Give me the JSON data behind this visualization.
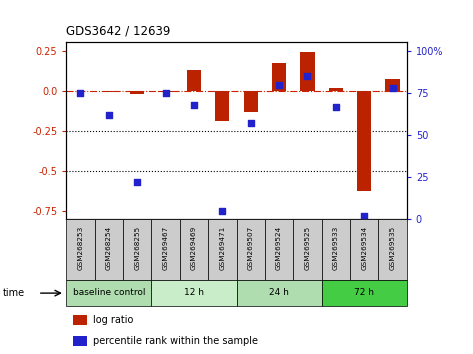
{
  "title": "GDS3642 / 12639",
  "samples": [
    "GSM268253",
    "GSM268254",
    "GSM268255",
    "GSM269467",
    "GSM269469",
    "GSM269471",
    "GSM269507",
    "GSM269524",
    "GSM269525",
    "GSM269533",
    "GSM269534",
    "GSM269535"
  ],
  "log_ratio": [
    0.0,
    -0.01,
    -0.02,
    -0.005,
    0.13,
    -0.19,
    -0.13,
    0.17,
    0.24,
    0.02,
    -0.62,
    0.07
  ],
  "percentile_rank": [
    75,
    62,
    22,
    75,
    68,
    5,
    57,
    80,
    85,
    67,
    2,
    78
  ],
  "groups": [
    {
      "label": "baseline control",
      "start": 0,
      "end": 3,
      "color": "#b0ddb0"
    },
    {
      "label": "12 h",
      "start": 3,
      "end": 6,
      "color": "#c8edc8"
    },
    {
      "label": "24 h",
      "start": 6,
      "end": 9,
      "color": "#b0ddb0"
    },
    {
      "label": "72 h",
      "start": 9,
      "end": 12,
      "color": "#44cc44"
    }
  ],
  "bar_color_red": "#bb2200",
  "dot_color_blue": "#2222cc",
  "ylim_left": [
    -0.8,
    0.3
  ],
  "ylim_right": [
    0,
    105
  ],
  "yticks_left": [
    0.25,
    0.0,
    -0.25,
    -0.5,
    -0.75
  ],
  "yticks_right": [
    100,
    75,
    50,
    25,
    0
  ],
  "figsize": [
    4.73,
    3.54
  ],
  "dpi": 100
}
